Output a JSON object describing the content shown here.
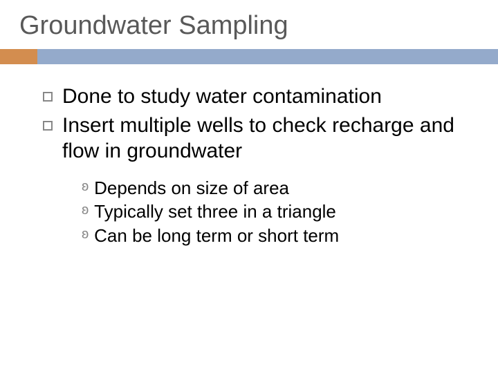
{
  "slide": {
    "title": "Groundwater Sampling",
    "title_color": "#595959",
    "title_fontsize": 38,
    "accent_left_color": "#d38d4f",
    "accent_right_color": "#94aacb",
    "background_color": "#ffffff",
    "main_bullets": [
      {
        "text": "Done to study water contamination"
      },
      {
        "text": "Insert multiple wells to check recharge and flow in groundwater"
      }
    ],
    "sub_bullets": [
      {
        "text": "Depends on size of area"
      },
      {
        "text": "Typically set three in a triangle"
      },
      {
        "text": "Can be long term or short term"
      }
    ],
    "body_fontsize": 30,
    "sub_fontsize": 26,
    "bullet_border_color": "#878787",
    "sub_marker_glyph": "ʚ",
    "sub_marker_color": "#878787"
  }
}
